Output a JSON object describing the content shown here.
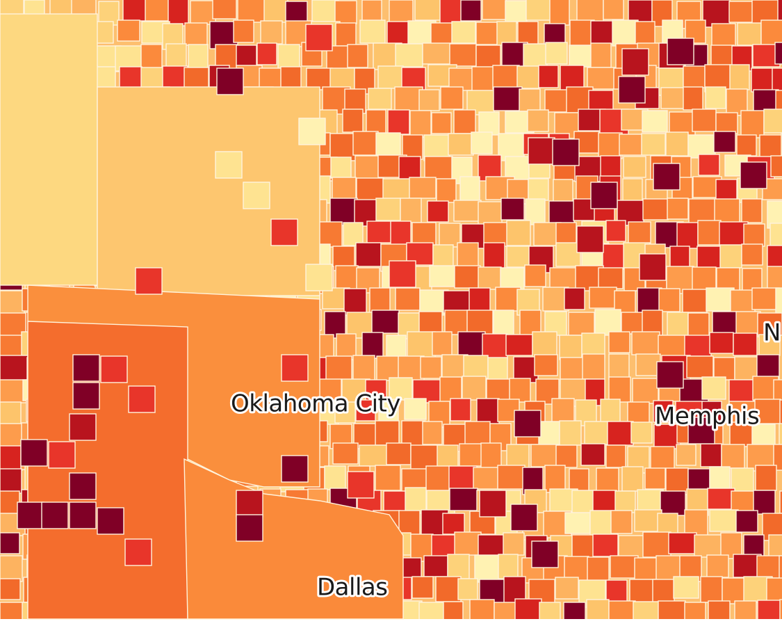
{
  "map": {
    "labels": [
      {
        "text": "Oklahoma City"
      },
      {
        "text": "Memphis"
      },
      {
        "text": "Dallas"
      },
      {
        "text": "N"
      }
    ]
  }
}
